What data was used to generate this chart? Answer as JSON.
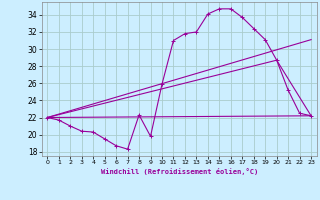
{
  "xlabel": "Windchill (Refroidissement éolien,°C)",
  "background_color": "#cceeff",
  "grid_color": "#aacccc",
  "line_color": "#990099",
  "xlim": [
    -0.5,
    23.5
  ],
  "ylim": [
    17.5,
    35.5
  ],
  "yticks": [
    18,
    20,
    22,
    24,
    26,
    28,
    30,
    32,
    34
  ],
  "xticks": [
    0,
    1,
    2,
    3,
    4,
    5,
    6,
    7,
    8,
    9,
    10,
    11,
    12,
    13,
    14,
    15,
    16,
    17,
    18,
    19,
    20,
    21,
    22,
    23
  ],
  "series1_x": [
    0,
    1,
    2,
    3,
    4,
    5,
    6,
    7,
    8,
    9,
    10,
    11,
    12,
    13,
    14,
    15,
    16,
    17,
    18,
    19,
    20,
    21,
    22,
    23
  ],
  "series1_y": [
    22.0,
    21.7,
    21.0,
    20.4,
    20.3,
    19.5,
    18.7,
    18.3,
    22.3,
    19.8,
    25.9,
    31.0,
    31.8,
    32.0,
    34.1,
    34.7,
    34.7,
    33.7,
    32.4,
    31.1,
    28.7,
    25.2,
    22.5,
    22.2
  ],
  "series2_x": [
    0,
    23
  ],
  "series2_y": [
    22.0,
    22.2
  ],
  "series3_x": [
    0,
    23
  ],
  "series3_y": [
    22.0,
    31.1
  ],
  "series4_x": [
    0,
    20,
    23
  ],
  "series4_y": [
    22.0,
    28.7,
    22.2
  ]
}
